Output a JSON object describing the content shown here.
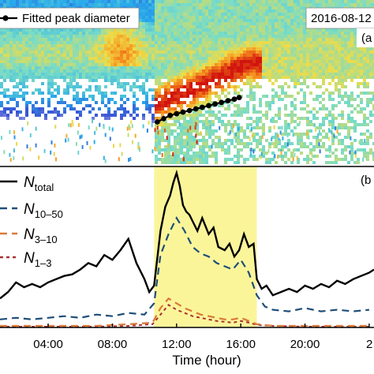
{
  "chart_data": [
    {
      "type": "heatmap",
      "panel_label": "(a",
      "legend_entry": "Fitted peak diameter",
      "date_label": "2016-08-12",
      "x_range_hours": [
        1,
        24
      ],
      "colors": {
        "low": "#1f3fd0",
        "mid": "#39c6e6",
        "high": "#f07a1a",
        "peak": "#d1120f"
      },
      "fitted_peak_diameter": {
        "x_hours": [
          10.8,
          11.2,
          11.6,
          12.0,
          12.4,
          12.8,
          13.2,
          13.6,
          14.0,
          14.4,
          14.8,
          15.2,
          15.6,
          15.9
        ],
        "y_rel": [
          0.25,
          0.27,
          0.29,
          0.3,
          0.31,
          0.32,
          0.33,
          0.34,
          0.35,
          0.36,
          0.37,
          0.38,
          0.39,
          0.4
        ]
      }
    },
    {
      "type": "line",
      "panel_label": "(b",
      "xlabel": "Time (hour)",
      "x_ticks": [
        {
          "x": 4,
          "label": "04:00"
        },
        {
          "x": 8,
          "label": "08:00"
        },
        {
          "x": 12,
          "label": "12:00"
        },
        {
          "x": 16,
          "label": "16:00"
        },
        {
          "x": 20,
          "label": "20:00"
        },
        {
          "x": 24,
          "label": "2"
        }
      ],
      "xlim": [
        1,
        24.3
      ],
      "ylim": [
        0,
        1
      ],
      "shaded_interval": {
        "start": 10.6,
        "end": 17.0,
        "color": "#fbf59a"
      },
      "series": [
        {
          "name_main": "N",
          "name_sub": "total",
          "style": "solid",
          "color": "#000000",
          "x": [
            1.0,
            1.5,
            2.0,
            2.5,
            3.0,
            3.5,
            4.0,
            4.5,
            5.0,
            5.5,
            6.0,
            6.5,
            7.0,
            7.5,
            8.0,
            8.5,
            9.0,
            9.5,
            10.0,
            10.3,
            10.6,
            11.0,
            11.3,
            11.6,
            11.8,
            12.0,
            12.2,
            12.4,
            12.6,
            12.8,
            13.0,
            13.3,
            13.6,
            14.0,
            14.3,
            14.6,
            15.0,
            15.3,
            15.6,
            15.9,
            16.2,
            16.5,
            16.8,
            17.0,
            17.3,
            17.6,
            18.0,
            18.5,
            19.0,
            19.5,
            20.0,
            20.5,
            21.0,
            21.5,
            22.0,
            22.5,
            23.0,
            23.5,
            24.0,
            24.3
          ],
          "y": [
            0.18,
            0.22,
            0.28,
            0.25,
            0.27,
            0.25,
            0.28,
            0.3,
            0.32,
            0.33,
            0.36,
            0.4,
            0.38,
            0.45,
            0.42,
            0.48,
            0.55,
            0.4,
            0.3,
            0.22,
            0.26,
            0.6,
            0.75,
            0.82,
            0.9,
            0.96,
            0.88,
            0.76,
            0.72,
            0.7,
            0.66,
            0.6,
            0.68,
            0.58,
            0.62,
            0.5,
            0.48,
            0.52,
            0.44,
            0.48,
            0.58,
            0.5,
            0.52,
            0.3,
            0.24,
            0.26,
            0.2,
            0.22,
            0.24,
            0.22,
            0.26,
            0.24,
            0.27,
            0.25,
            0.29,
            0.27,
            0.3,
            0.32,
            0.34,
            0.36
          ]
        },
        {
          "name_main": "N",
          "name_sub": "10–50",
          "style": "dash",
          "color": "#1f4e79",
          "x": [
            1.0,
            2.0,
            3.0,
            4.0,
            5.0,
            6.0,
            7.0,
            8.0,
            9.0,
            10.0,
            10.6,
            11.0,
            11.5,
            12.0,
            12.5,
            13.0,
            13.5,
            14.0,
            14.5,
            15.0,
            15.5,
            16.0,
            16.5,
            17.0,
            17.5,
            18.0,
            19.0,
            20.0,
            21.0,
            22.0,
            23.0,
            24.0
          ],
          "y": [
            0.05,
            0.06,
            0.05,
            0.06,
            0.07,
            0.06,
            0.08,
            0.07,
            0.09,
            0.08,
            0.15,
            0.45,
            0.58,
            0.68,
            0.6,
            0.5,
            0.46,
            0.44,
            0.4,
            0.38,
            0.36,
            0.42,
            0.34,
            0.2,
            0.13,
            0.11,
            0.1,
            0.12,
            0.1,
            0.11,
            0.1,
            0.11
          ]
        },
        {
          "name_main": "N",
          "name_sub": "3–10",
          "style": "dash",
          "color": "#d97a3a",
          "x": [
            1.0,
            3.0,
            5.0,
            7.0,
            9.0,
            10.5,
            11.0,
            11.5,
            12.0,
            12.5,
            13.0,
            13.5,
            14.0,
            14.5,
            15.0,
            15.5,
            16.0,
            16.5,
            17.0,
            18.0,
            20.0,
            22.0,
            24.0
          ],
          "y": [
            0.01,
            0.01,
            0.01,
            0.01,
            0.02,
            0.03,
            0.12,
            0.18,
            0.15,
            0.12,
            0.1,
            0.08,
            0.07,
            0.06,
            0.05,
            0.05,
            0.06,
            0.04,
            0.02,
            0.01,
            0.01,
            0.01,
            0.01
          ]
        },
        {
          "name_main": "N",
          "name_sub": "1–3",
          "style": "dash",
          "color": "#a83232",
          "x": [
            1.0,
            3.0,
            5.0,
            7.0,
            9.0,
            10.5,
            11.0,
            11.5,
            12.0,
            12.5,
            13.0,
            13.5,
            14.0,
            14.5,
            15.0,
            15.5,
            16.0,
            16.5,
            17.0,
            18.0,
            20.0,
            22.0,
            24.0
          ],
          "y": [
            0.005,
            0.005,
            0.005,
            0.005,
            0.01,
            0.02,
            0.08,
            0.14,
            0.11,
            0.09,
            0.07,
            0.06,
            0.05,
            0.04,
            0.035,
            0.03,
            0.04,
            0.03,
            0.015,
            0.01,
            0.005,
            0.005,
            0.005
          ]
        }
      ]
    }
  ]
}
